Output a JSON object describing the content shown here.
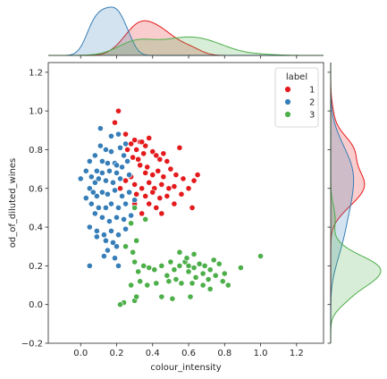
{
  "chart_data": {
    "type": "scatter",
    "xlabel": "colour_intensity",
    "ylabel": "od_of_diluted_wines",
    "xlim": [
      -0.18,
      1.35
    ],
    "ylim": [
      -0.2,
      1.25
    ],
    "x_ticks": [
      0.0,
      0.2,
      0.4,
      0.6,
      0.8,
      1.0,
      1.2
    ],
    "x_tick_labels": [
      "0.0",
      "0.2",
      "0.4",
      "0.6",
      "0.8",
      "1.0",
      "1.2"
    ],
    "y_ticks": [
      -0.2,
      0.0,
      0.2,
      0.4,
      0.6,
      0.8,
      1.0,
      1.2
    ],
    "y_tick_labels": [
      "−0.2",
      "0.0",
      "0.2",
      "0.4",
      "0.6",
      "0.8",
      "1.0",
      "1.2"
    ],
    "grid": false,
    "legend": {
      "title": "label",
      "placement": "top-right"
    },
    "marginals": "kde",
    "series": [
      {
        "name": "1",
        "color": "#e41a1c",
        "points": [
          [
            0.21,
            1.0
          ],
          [
            0.19,
            0.94
          ],
          [
            0.25,
            0.88
          ],
          [
            0.3,
            0.85
          ],
          [
            0.33,
            0.84
          ],
          [
            0.36,
            0.82
          ],
          [
            0.34,
            0.84
          ],
          [
            0.38,
            0.86
          ],
          [
            0.28,
            0.83
          ],
          [
            0.31,
            0.8
          ],
          [
            0.26,
            0.8
          ],
          [
            0.29,
            0.76
          ],
          [
            0.32,
            0.75
          ],
          [
            0.35,
            0.78
          ],
          [
            0.4,
            0.79
          ],
          [
            0.42,
            0.77
          ],
          [
            0.44,
            0.75
          ],
          [
            0.46,
            0.78
          ],
          [
            0.55,
            0.81
          ],
          [
            0.48,
            0.74
          ],
          [
            0.37,
            0.71
          ],
          [
            0.33,
            0.72
          ],
          [
            0.36,
            0.68
          ],
          [
            0.4,
            0.67
          ],
          [
            0.43,
            0.69
          ],
          [
            0.46,
            0.66
          ],
          [
            0.5,
            0.7
          ],
          [
            0.53,
            0.67
          ],
          [
            0.57,
            0.65
          ],
          [
            0.63,
            0.64
          ],
          [
            0.65,
            0.67
          ],
          [
            0.28,
            0.66
          ],
          [
            0.25,
            0.64
          ],
          [
            0.3,
            0.62
          ],
          [
            0.34,
            0.6
          ],
          [
            0.38,
            0.63
          ],
          [
            0.41,
            0.6
          ],
          [
            0.45,
            0.62
          ],
          [
            0.49,
            0.6
          ],
          [
            0.52,
            0.61
          ],
          [
            0.56,
            0.57
          ],
          [
            0.6,
            0.6
          ],
          [
            0.27,
            0.58
          ],
          [
            0.31,
            0.57
          ],
          [
            0.36,
            0.56
          ],
          [
            0.4,
            0.58
          ],
          [
            0.44,
            0.55
          ],
          [
            0.48,
            0.56
          ],
          [
            0.52,
            0.52
          ],
          [
            0.38,
            0.52
          ],
          [
            0.42,
            0.5
          ],
          [
            0.45,
            0.47
          ],
          [
            0.34,
            0.47
          ],
          [
            0.3,
            0.52
          ],
          [
            0.22,
            0.6
          ],
          [
            0.62,
            0.5
          ]
        ]
      },
      {
        "name": "2",
        "color": "#377eb8",
        "points": [
          [
            0.11,
            0.82
          ],
          [
            0.14,
            0.8
          ],
          [
            0.17,
            0.79
          ],
          [
            0.22,
            0.81
          ],
          [
            0.25,
            0.83
          ],
          [
            0.08,
            0.77
          ],
          [
            0.05,
            0.74
          ],
          [
            0.12,
            0.74
          ],
          [
            0.15,
            0.73
          ],
          [
            0.19,
            0.73
          ],
          [
            0.23,
            0.71
          ],
          [
            0.09,
            0.69
          ],
          [
            0.12,
            0.68
          ],
          [
            0.16,
            0.69
          ],
          [
            0.2,
            0.68
          ],
          [
            0.26,
            0.74
          ],
          [
            0.06,
            0.66
          ],
          [
            0.08,
            0.63
          ],
          [
            0.1,
            0.65
          ],
          [
            0.14,
            0.64
          ],
          [
            0.18,
            0.63
          ],
          [
            0.22,
            0.65
          ],
          [
            0.27,
            0.67
          ],
          [
            0.0,
            0.65
          ],
          [
            0.05,
            0.6
          ],
          [
            0.07,
            0.58
          ],
          [
            0.09,
            0.56
          ],
          [
            0.12,
            0.58
          ],
          [
            0.15,
            0.57
          ],
          [
            0.19,
            0.59
          ],
          [
            0.23,
            0.56
          ],
          [
            0.27,
            0.58
          ],
          [
            0.03,
            0.55
          ],
          [
            0.06,
            0.52
          ],
          [
            0.1,
            0.5
          ],
          [
            0.14,
            0.5
          ],
          [
            0.17,
            0.52
          ],
          [
            0.21,
            0.5
          ],
          [
            0.25,
            0.52
          ],
          [
            0.3,
            0.54
          ],
          [
            0.08,
            0.47
          ],
          [
            0.12,
            0.45
          ],
          [
            0.16,
            0.43
          ],
          [
            0.2,
            0.45
          ],
          [
            0.24,
            0.44
          ],
          [
            0.28,
            0.46
          ],
          [
            0.05,
            0.4
          ],
          [
            0.09,
            0.38
          ],
          [
            0.13,
            0.36
          ],
          [
            0.17,
            0.38
          ],
          [
            0.21,
            0.36
          ],
          [
            0.25,
            0.39
          ],
          [
            0.09,
            0.35
          ],
          [
            0.14,
            0.33
          ],
          [
            0.18,
            0.32
          ],
          [
            0.2,
            0.3
          ],
          [
            0.15,
            0.28
          ],
          [
            0.19,
            0.24
          ],
          [
            0.21,
            0.2
          ],
          [
            0.05,
            0.2
          ],
          [
            0.13,
            0.25
          ],
          [
            0.11,
            0.91
          ],
          [
            0.17,
            0.87
          ],
          [
            0.21,
            0.88
          ],
          [
            0.24,
            0.77
          ],
          [
            0.03,
            0.69
          ],
          [
            0.2,
            0.72
          ]
        ]
      },
      {
        "name": "3",
        "color": "#4daf4a",
        "points": [
          [
            0.36,
            0.44
          ],
          [
            0.3,
            0.5
          ],
          [
            0.28,
            0.42
          ],
          [
            0.25,
            0.3
          ],
          [
            0.31,
            0.33
          ],
          [
            0.29,
            0.27
          ],
          [
            0.3,
            0.22
          ],
          [
            0.32,
            0.17
          ],
          [
            0.35,
            0.2
          ],
          [
            0.38,
            0.19
          ],
          [
            0.41,
            0.18
          ],
          [
            0.45,
            0.2
          ],
          [
            0.48,
            0.15
          ],
          [
            0.5,
            0.22
          ],
          [
            0.52,
            0.18
          ],
          [
            0.55,
            0.2
          ],
          [
            0.58,
            0.22
          ],
          [
            0.6,
            0.2
          ],
          [
            0.63,
            0.19
          ],
          [
            0.66,
            0.21
          ],
          [
            0.69,
            0.2
          ],
          [
            0.72,
            0.18
          ],
          [
            0.74,
            0.23
          ],
          [
            0.77,
            0.21
          ],
          [
            0.8,
            0.16
          ],
          [
            0.55,
            0.27
          ],
          [
            0.59,
            0.24
          ],
          [
            0.63,
            0.26
          ],
          [
            0.89,
            0.19
          ],
          [
            1.0,
            0.25
          ],
          [
            0.6,
            0.17
          ],
          [
            0.64,
            0.14
          ],
          [
            0.68,
            0.16
          ],
          [
            0.71,
            0.13
          ],
          [
            0.75,
            0.15
          ],
          [
            0.79,
            0.12
          ],
          [
            0.49,
            0.12
          ],
          [
            0.53,
            0.13
          ],
          [
            0.56,
            0.11
          ],
          [
            0.62,
            0.11
          ],
          [
            0.82,
            0.1
          ],
          [
            0.33,
            0.12
          ],
          [
            0.37,
            0.1
          ],
          [
            0.42,
            0.11
          ],
          [
            0.28,
            0.1
          ],
          [
            0.3,
            0.02
          ],
          [
            0.24,
            0.01
          ],
          [
            0.22,
            0.0
          ],
          [
            0.45,
            0.04
          ],
          [
            0.51,
            0.03
          ],
          [
            0.61,
            0.04
          ],
          [
            0.31,
            0.04
          ],
          [
            0.68,
            0.1
          ],
          [
            0.72,
            0.08
          ]
        ]
      }
    ]
  }
}
